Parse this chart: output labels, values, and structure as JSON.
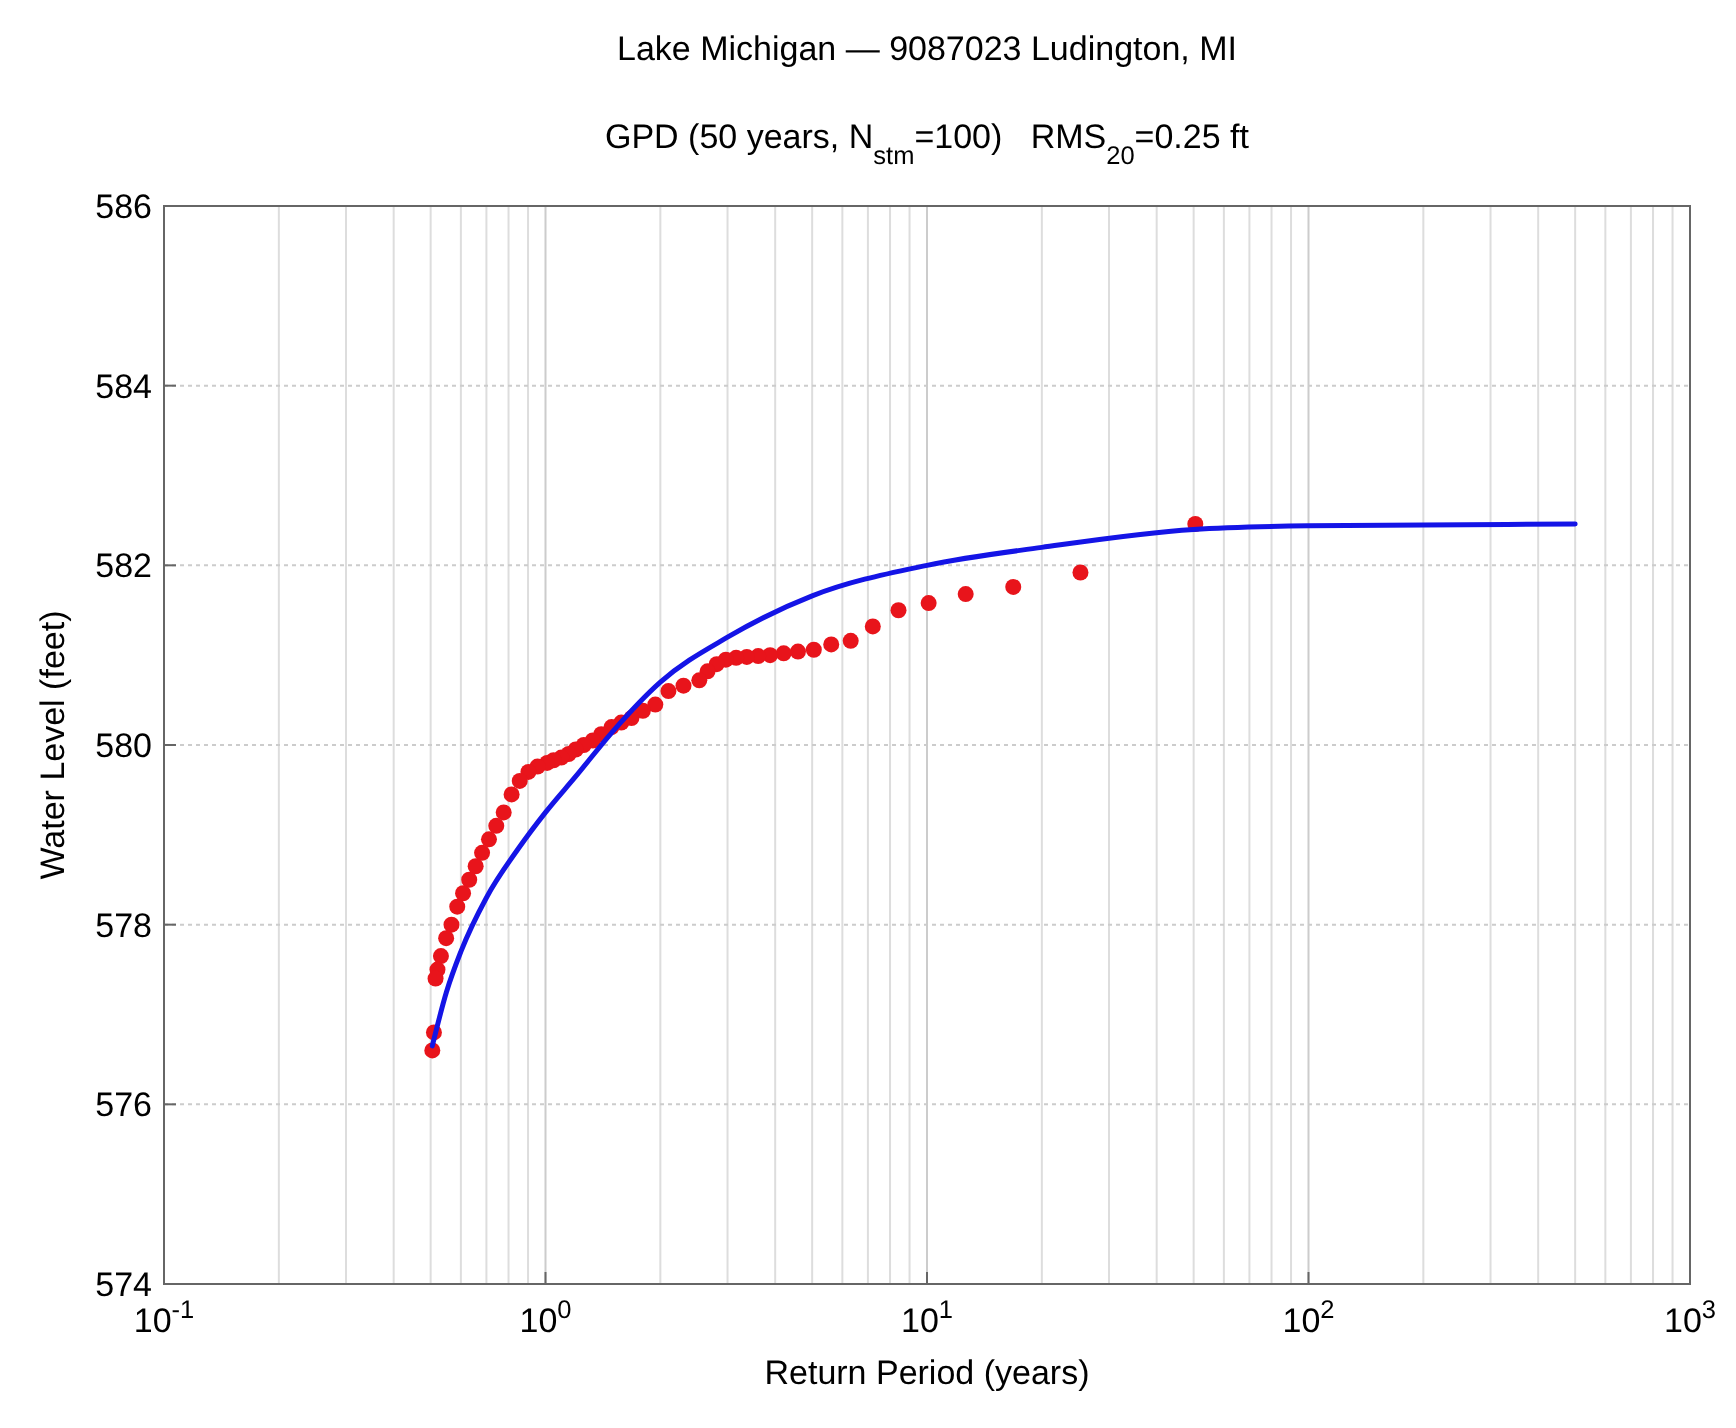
{
  "chart_data": {
    "type": "scatter",
    "title": "Lake Michigan — 9087023 Ludington, MI",
    "subtitle": "GPD (50 years, N$_{stm}$=100)   RMS$_{20}$=0.25 ft",
    "xlabel": "Return Period (years)",
    "ylabel": "Water Level (feet)",
    "log": "x",
    "grid": true,
    "xlim": [
      0.1,
      1000
    ],
    "xticks": [
      {
        "value": 0.1,
        "label": "10$^{-1}$"
      },
      {
        "value": 1,
        "label": "10$^{0}$"
      },
      {
        "value": 10,
        "label": "10$^{1}$"
      },
      {
        "value": 100,
        "label": "10$^{2}$"
      },
      {
        "value": 1000,
        "label": "10$^{3}$"
      }
    ],
    "ylim": [
      574,
      586
    ],
    "yticks": [
      574,
      576,
      578,
      580,
      582,
      584,
      586
    ],
    "series": [
      {
        "marker": "circle",
        "color": "#e8141b",
        "x": [
          50.5,
          25.25,
          16.83,
          12.63,
          10.1,
          8.42,
          7.21,
          6.31,
          5.61,
          5.05,
          4.59,
          4.21,
          3.88,
          3.61,
          3.37,
          3.16,
          2.97,
          2.81,
          2.66,
          2.53,
          2.3,
          2.1,
          1.94,
          1.8,
          1.68,
          1.58,
          1.49,
          1.4,
          1.33,
          1.26,
          1.2,
          1.15,
          1.1,
          1.05,
          1.01,
          0.953,
          0.902,
          0.856,
          0.815,
          0.777,
          0.743,
          0.711,
          0.682,
          0.656,
          0.631,
          0.608,
          0.587,
          0.567,
          0.549,
          0.532,
          0.521,
          0.515,
          0.51,
          0.505
        ],
        "values": [
          582.46,
          581.92,
          581.76,
          581.68,
          581.58,
          581.5,
          581.32,
          581.16,
          581.12,
          581.06,
          581.04,
          581.02,
          581.0,
          580.99,
          580.98,
          580.97,
          580.95,
          580.9,
          580.82,
          580.72,
          580.66,
          580.6,
          580.45,
          580.38,
          580.3,
          580.25,
          580.2,
          580.12,
          580.05,
          580.0,
          579.95,
          579.9,
          579.86,
          579.83,
          579.8,
          579.76,
          579.7,
          579.6,
          579.45,
          579.25,
          579.1,
          578.95,
          578.8,
          578.65,
          578.5,
          578.35,
          578.2,
          578.0,
          577.85,
          577.65,
          577.5,
          577.4,
          576.8,
          576.6
        ]
      },
      {
        "type": "line",
        "color": "#1414e6",
        "x": [
          0.505,
          0.55,
          0.6,
          0.7,
          0.85,
          1,
          1.2,
          1.5,
          2,
          3,
          5,
          10,
          20,
          50,
          100,
          200,
          500
        ],
        "values": [
          576.65,
          577.25,
          577.7,
          578.3,
          578.85,
          579.25,
          579.65,
          580.15,
          580.7,
          581.2,
          581.66,
          582.0,
          582.2,
          582.4,
          582.44,
          582.45,
          582.46
        ]
      }
    ]
  }
}
